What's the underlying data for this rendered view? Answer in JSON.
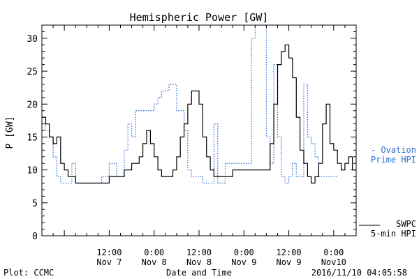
{
  "chart_data": {
    "type": "line",
    "title": "Hemispheric Power [GW]",
    "ylabel": "P [GW]",
    "xlabel": "Date and Time",
    "ylim": [
      0,
      32
    ],
    "xlim": [
      "2016-11-06T18:00",
      "2016-11-10T06:00"
    ],
    "yticks": [
      0,
      5,
      10,
      15,
      20,
      25,
      30
    ],
    "xticks": [
      {
        "t": "2016-11-07T12:00",
        "line1": "12:00",
        "line2": "Nov 7"
      },
      {
        "t": "2016-11-08T00:00",
        "line1": "0:00",
        "line2": "Nov 8"
      },
      {
        "t": "2016-11-08T12:00",
        "line1": "12:00",
        "line2": "Nov 8"
      },
      {
        "t": "2016-11-09T00:00",
        "line1": "0:00",
        "line2": "Nov 9"
      },
      {
        "t": "2016-11-09T12:00",
        "line1": "12:00",
        "line2": "Nov 9"
      },
      {
        "t": "2016-11-10T00:00",
        "line1": "0:00",
        "line2": "Nov10"
      }
    ],
    "grid": false,
    "legend_position": "right",
    "series": [
      {
        "name": "Ovation Prime HPI",
        "legend_lines": [
          "- Ovation",
          "Prime HPI"
        ],
        "style": "dotted",
        "color": "#2f6fd0",
        "x": [
          "2016-11-06T18:00",
          "2016-11-06T19:00",
          "2016-11-06T20:00",
          "2016-11-06T21:00",
          "2016-11-06T22:00",
          "2016-11-06T23:00",
          "2016-11-07T00:00",
          "2016-11-07T01:00",
          "2016-11-07T02:00",
          "2016-11-07T03:00",
          "2016-11-07T04:00",
          "2016-11-07T05:00",
          "2016-11-07T06:00",
          "2016-11-07T07:00",
          "2016-11-07T08:00",
          "2016-11-07T10:00",
          "2016-11-07T12:00",
          "2016-11-07T14:00",
          "2016-11-07T16:00",
          "2016-11-07T17:00",
          "2016-11-07T18:00",
          "2016-11-07T19:00",
          "2016-11-07T20:00",
          "2016-11-07T21:00",
          "2016-11-07T22:00",
          "2016-11-07T23:00",
          "2016-11-08T00:00",
          "2016-11-08T01:00",
          "2016-11-08T02:00",
          "2016-11-08T04:00",
          "2016-11-08T06:00",
          "2016-11-08T08:00",
          "2016-11-08T09:00",
          "2016-11-08T10:00",
          "2016-11-08T11:00",
          "2016-11-08T12:00",
          "2016-11-08T13:00",
          "2016-11-08T14:00",
          "2016-11-08T15:00",
          "2016-11-08T16:00",
          "2016-11-08T17:00",
          "2016-11-08T18:00",
          "2016-11-08T19:00",
          "2016-11-08T20:00",
          "2016-11-08T21:00",
          "2016-11-08T22:00",
          "2016-11-08T23:00",
          "2016-11-09T00:00",
          "2016-11-09T02:00",
          "2016-11-09T03:00",
          "2016-11-09T04:00",
          "2016-11-09T06:00",
          "2016-11-09T07:00",
          "2016-11-09T08:00",
          "2016-11-09T09:00",
          "2016-11-09T10:00",
          "2016-11-09T11:00",
          "2016-11-09T12:00",
          "2016-11-09T13:00",
          "2016-11-09T14:00",
          "2016-11-09T15:00",
          "2016-11-09T16:00",
          "2016-11-09T17:00",
          "2016-11-09T18:00",
          "2016-11-09T19:00",
          "2016-11-09T20:00",
          "2016-11-09T21:00",
          "2016-11-09T22:00",
          "2016-11-09T23:00",
          "2016-11-10T00:00",
          "2016-11-10T01:00"
        ],
        "y": [
          17,
          16,
          15,
          12,
          9,
          8,
          8,
          8,
          11,
          8,
          8,
          8,
          8,
          8,
          8,
          9,
          11,
          9,
          13,
          17,
          15,
          19,
          19,
          19,
          19,
          19,
          20,
          21,
          22,
          23,
          19,
          16,
          10,
          9,
          9,
          9,
          8,
          8,
          8,
          17,
          8,
          8,
          11,
          11,
          11,
          11,
          11,
          11,
          30,
          32,
          32,
          15,
          11,
          26,
          15,
          9,
          8,
          9,
          11,
          9,
          9,
          23,
          15,
          14,
          12,
          9,
          9,
          9,
          9,
          9,
          9
        ]
      },
      {
        "name": "SWPC 5-min HPI",
        "legend_lines": [
          "SWPC",
          "5-min HPI"
        ],
        "style": "solid",
        "color": "#000000",
        "x": [
          "2016-11-06T18:00",
          "2016-11-06T19:00",
          "2016-11-06T20:00",
          "2016-11-06T21:00",
          "2016-11-06T22:00",
          "2016-11-06T23:00",
          "2016-11-07T00:00",
          "2016-11-07T01:00",
          "2016-11-07T02:00",
          "2016-11-07T03:00",
          "2016-11-07T04:00",
          "2016-11-07T06:00",
          "2016-11-07T08:00",
          "2016-11-07T10:00",
          "2016-11-07T12:00",
          "2016-11-07T14:00",
          "2016-11-07T16:00",
          "2016-11-07T18:00",
          "2016-11-07T20:00",
          "2016-11-07T21:00",
          "2016-11-07T22:00",
          "2016-11-07T23:00",
          "2016-11-08T00:00",
          "2016-11-08T01:00",
          "2016-11-08T02:00",
          "2016-11-08T03:00",
          "2016-11-08T04:00",
          "2016-11-08T05:00",
          "2016-11-08T06:00",
          "2016-11-08T07:00",
          "2016-11-08T08:00",
          "2016-11-08T09:00",
          "2016-11-08T10:00",
          "2016-11-08T11:00",
          "2016-11-08T12:00",
          "2016-11-08T13:00",
          "2016-11-08T14:00",
          "2016-11-08T15:00",
          "2016-11-08T16:00",
          "2016-11-08T17:00",
          "2016-11-08T18:00",
          "2016-11-08T19:00",
          "2016-11-08T20:00",
          "2016-11-08T21:00",
          "2016-11-08T22:00",
          "2016-11-08T23:00",
          "2016-11-09T00:00",
          "2016-11-09T02:00",
          "2016-11-09T04:00",
          "2016-11-09T06:00",
          "2016-11-09T07:00",
          "2016-11-09T08:00",
          "2016-11-09T09:00",
          "2016-11-09T10:00",
          "2016-11-09T11:00",
          "2016-11-09T12:00",
          "2016-11-09T13:00",
          "2016-11-09T14:00",
          "2016-11-09T15:00",
          "2016-11-09T16:00",
          "2016-11-09T17:00",
          "2016-11-09T18:00",
          "2016-11-09T19:00",
          "2016-11-09T20:00",
          "2016-11-09T21:00",
          "2016-11-09T22:00",
          "2016-11-09T23:00",
          "2016-11-10T00:00",
          "2016-11-10T01:00",
          "2016-11-10T02:00",
          "2016-11-10T03:00",
          "2016-11-10T04:00",
          "2016-11-10T05:00",
          "2016-11-10T06:00"
        ],
        "y": [
          18,
          17,
          15,
          14,
          15,
          11,
          10,
          9,
          9,
          8,
          8,
          8,
          8,
          8,
          9,
          9,
          10,
          11,
          12,
          14,
          16,
          14,
          12,
          10,
          9,
          9,
          9,
          10,
          12,
          15,
          17,
          20,
          22,
          22,
          20,
          15,
          12,
          10,
          9,
          9,
          9,
          9,
          9,
          10,
          10,
          10,
          10,
          10,
          10,
          10,
          14,
          20,
          26,
          28,
          29,
          27,
          24,
          18,
          13,
          11,
          9,
          8,
          9,
          11,
          17,
          20,
          14,
          13,
          11,
          10,
          11,
          12,
          10,
          10
        ]
      }
    ]
  },
  "footer": {
    "plot_credit": "Plot: CCMC",
    "timestamp": "2016/11/10 04:05:58"
  }
}
